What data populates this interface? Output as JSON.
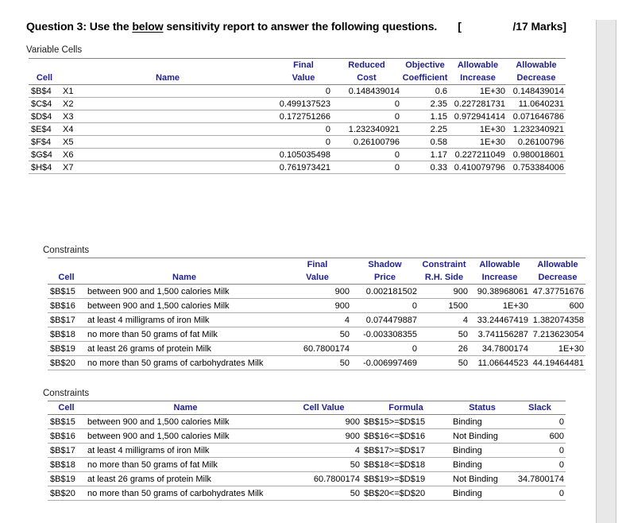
{
  "title": {
    "prefix": "Question 3: Use the ",
    "underlined_word": "below",
    "suffix": " sensitivity report to answer the following questions.",
    "bracket": "[",
    "marks": "/17 Marks]"
  },
  "colors": {
    "header_text": "#21218e",
    "rule_dark": "#7f7f7f",
    "rule_light": "#ababab",
    "gutter_bg": "#e8e8e8",
    "gutter_border": "#c6c6c6"
  },
  "variable_cells": {
    "section_label": "Variable Cells",
    "header_top": [
      "",
      "",
      "Final",
      "Reduced",
      "Objective",
      "Allowable",
      "Allowable"
    ],
    "header_bottom": [
      "Cell",
      "Name",
      "Value",
      "Cost",
      "Coefficient",
      "Increase",
      "Decrease"
    ],
    "rows": [
      [
        "$B$4",
        "X1",
        "0",
        "0.148439014",
        "0.6",
        "1E+30",
        "0.148439014"
      ],
      [
        "$C$4",
        "X2",
        "0.499137523",
        "0",
        "2.35",
        "0.227281731",
        "11.0640231"
      ],
      [
        "$D$4",
        "X3",
        "0.172751266",
        "0",
        "1.15",
        "0.972941414",
        "0.071646786"
      ],
      [
        "$E$4",
        "X4",
        "0",
        "1.232340921",
        "2.25",
        "1E+30",
        "1.232340921"
      ],
      [
        "$F$4",
        "X5",
        "0",
        "0.26100796",
        "0.58",
        "1E+30",
        "0.26100796"
      ],
      [
        "$G$4",
        "X6",
        "0.105035498",
        "0",
        "1.17",
        "0.227211049",
        "0.980018601"
      ],
      [
        "$H$4",
        "X7",
        "0.761973421",
        "0",
        "0.33",
        "0.410079796",
        "0.753384006"
      ]
    ]
  },
  "constraints_sensitivity": {
    "section_label": "Constraints",
    "header_top": [
      "",
      "",
      "Final",
      "Shadow",
      "Constraint",
      "Allowable",
      "Allowable"
    ],
    "header_bottom": [
      "Cell",
      "Name",
      "Value",
      "Price",
      "R.H. Side",
      "Increase",
      "Decrease"
    ],
    "rows": [
      [
        "$B$15",
        "between 900 and 1,500 calories Milk",
        "900",
        "0.002181502",
        "900",
        "90.38968061",
        "47.37751676"
      ],
      [
        "$B$16",
        "between 900 and 1,500 calories Milk",
        "900",
        "0",
        "1500",
        "1E+30",
        "600"
      ],
      [
        "$B$17",
        "at least 4 milligrams of iron Milk",
        "4",
        "0.074479887",
        "4",
        "33.24467419",
        "1.382074358"
      ],
      [
        "$B$18",
        "no more than 50 grams of fat Milk",
        "50",
        "-0.003308355",
        "50",
        "3.741156287",
        "7.213623054"
      ],
      [
        "$B$19",
        "at least 26 grams of protein Milk",
        "60.7800174",
        "0",
        "26",
        "34.7800174",
        "1E+30"
      ],
      [
        "$B$20",
        "no more than 50 grams of carbohydrates Milk",
        "50",
        "-0.006997469",
        "50",
        "11.06644523",
        "44.19464481"
      ]
    ]
  },
  "constraints_status": {
    "section_label": "Constraints",
    "headers": [
      "Cell",
      "Name",
      "Cell Value",
      "Formula",
      "Status",
      "Slack"
    ],
    "rows": [
      [
        "$B$15",
        "between 900 and 1,500 calories Milk",
        "900",
        "$B$15>=$D$15",
        "Binding",
        "0"
      ],
      [
        "$B$16",
        "between 900 and 1,500 calories Milk",
        "900",
        "$B$16<=$D$16",
        "Not Binding",
        "600"
      ],
      [
        "$B$17",
        "at least 4 milligrams of iron Milk",
        "4",
        "$B$17>=$D$17",
        "Binding",
        "0"
      ],
      [
        "$B$18",
        "no more than 50 grams of fat Milk",
        "50",
        "$B$18<=$D$18",
        "Binding",
        "0"
      ],
      [
        "$B$19",
        "at least 26 grams of protein Milk",
        "60.7800174",
        "$B$19>=$D$19",
        "Not Binding",
        "34.7800174"
      ],
      [
        "$B$20",
        "no more than 50 grams of carbohydrates Milk",
        "50",
        "$B$20<=$D$20",
        "Binding",
        "0"
      ]
    ]
  }
}
